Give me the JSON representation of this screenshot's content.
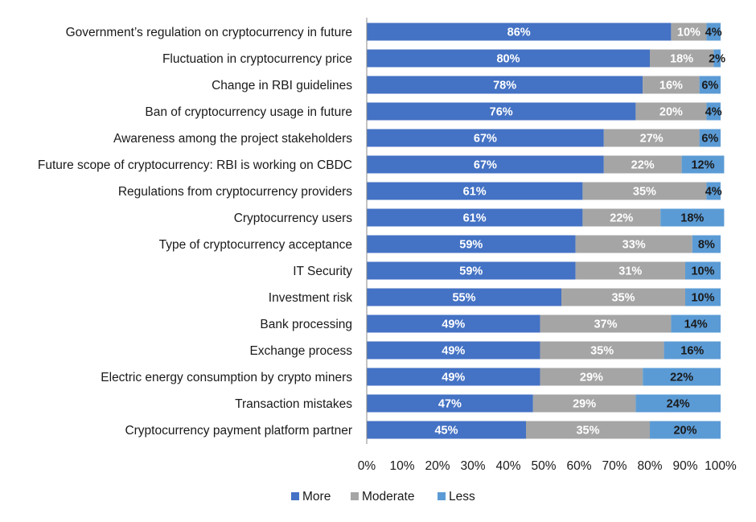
{
  "chart_data": {
    "type": "bar",
    "orientation": "horizontal",
    "stacked": "percent",
    "categories": [
      "Government’s regulation on cryptocurrency in future",
      "Fluctuation in cryptocurrency price",
      "Change in RBI guidelines",
      "Ban of cryptocurrency usage in future",
      "Awareness among the project stakeholders",
      "Future scope of cryptocurrency: RBI is working on CBDC",
      "Regulations from cryptocurrency providers",
      "Cryptocurrency users",
      "Type of cryptocurrency acceptance",
      "IT Security",
      "Investment risk",
      "Bank processing",
      "Exchange process",
      "Electric energy consumption by crypto miners",
      "Transaction mistakes",
      "Cryptocurrency payment platform partner"
    ],
    "series": [
      {
        "name": "More",
        "color": "#4472C4",
        "label_color": "#ffffff",
        "values": [
          86,
          80,
          78,
          76,
          67,
          67,
          61,
          61,
          59,
          59,
          55,
          49,
          49,
          49,
          47,
          45
        ]
      },
      {
        "name": "Moderate",
        "color": "#A5A5A5",
        "label_color": "#ffffff",
        "values": [
          10,
          18,
          16,
          20,
          27,
          22,
          35,
          22,
          33,
          31,
          35,
          37,
          35,
          29,
          29,
          35
        ]
      },
      {
        "name": "Less",
        "color": "#5B9BD5",
        "label_color": "#1a1a1a",
        "values": [
          4,
          2,
          6,
          4,
          6,
          12,
          4,
          18,
          8,
          10,
          10,
          14,
          16,
          22,
          24,
          20
        ]
      }
    ],
    "data_labels": [
      [
        "86%",
        "10%",
        "4%"
      ],
      [
        "80%",
        "18%",
        "2%"
      ],
      [
        "78%",
        "16%",
        "6%"
      ],
      [
        "76%",
        "20%",
        "4%"
      ],
      [
        "67%",
        "27%",
        "6%"
      ],
      [
        "67%",
        "22%",
        "12%"
      ],
      [
        "61%",
        "35%",
        "4%"
      ],
      [
        "61%",
        "22%",
        "18%"
      ],
      [
        "59%",
        "33%",
        "8%"
      ],
      [
        "59%",
        "31%",
        "10%"
      ],
      [
        "55%",
        "35%",
        "10%"
      ],
      [
        "49%",
        "37%",
        "14%"
      ],
      [
        "49%",
        "35%",
        "16%"
      ],
      [
        "49%",
        "29%",
        "22%"
      ],
      [
        "47%",
        "29%",
        "24%"
      ],
      [
        "45%",
        "35%",
        "20%"
      ]
    ],
    "xlim": [
      0,
      100
    ],
    "x_ticks": [
      "0%",
      "10%",
      "20%",
      "30%",
      "40%",
      "50%",
      "60%",
      "70%",
      "80%",
      "90%",
      "100%"
    ],
    "title": "",
    "xlabel": "",
    "ylabel": "",
    "grid": false,
    "legend": {
      "position": "bottom",
      "entries": [
        "More",
        "Moderate",
        "Less"
      ]
    }
  }
}
